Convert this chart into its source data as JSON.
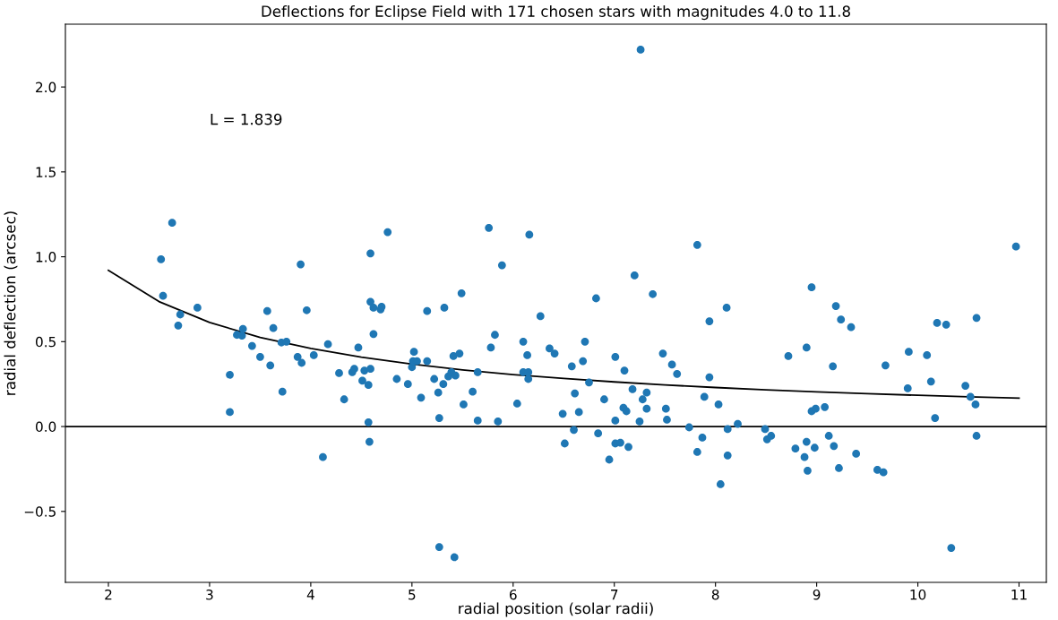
{
  "chart_data": {
    "type": "scatter",
    "title": "Deflections for Eclipse Field with 171 chosen stars with magnitudes 4.0 to 11.8",
    "xlabel": "radial position (solar radii)",
    "ylabel": "radial deflection (arcsec)",
    "annotations": [
      "L = 1.839"
    ],
    "xlim": [
      1.575,
      11.27
    ],
    "xticks": [
      2,
      3,
      4,
      5,
      6,
      7,
      8,
      9,
      10,
      11
    ],
    "ylim": [
      -0.918,
      2.37
    ],
    "yticks": [
      {
        "value": -0.5,
        "label": "−0.5"
      },
      {
        "value": 0,
        "label": "0.0"
      },
      {
        "value": 0.5,
        "label": "0.5"
      },
      {
        "value": 1.0,
        "label": "1.0"
      },
      {
        "value": 1.5,
        "label": "1.5"
      },
      {
        "value": 2.0,
        "label": "2.0"
      }
    ],
    "grid": false,
    "ref_lines": [
      {
        "axis": "y",
        "value": 0,
        "color": "#000000"
      }
    ],
    "series": [
      {
        "color": "#1f77b4",
        "marker": "circle",
        "x": [
          2.52,
          2.54,
          2.63,
          2.69,
          2.71,
          2.88,
          3.2,
          3.2,
          3.27,
          3.32,
          3.33,
          3.42,
          3.5,
          3.57,
          3.6,
          3.63,
          3.71,
          3.72,
          3.76,
          3.87,
          3.9,
          3.91,
          3.96,
          4.03,
          4.12,
          4.17,
          4.28,
          4.33,
          4.41,
          4.43,
          4.47,
          4.51,
          4.53,
          4.57,
          4.57,
          4.58,
          4.59,
          4.59,
          4.59,
          4.62,
          4.62,
          4.69,
          4.7,
          4.76,
          4.85,
          4.96,
          5.0,
          5.01,
          5.02,
          5.05,
          5.09,
          5.15,
          5.15,
          5.22,
          5.26,
          5.27,
          5.27,
          5.31,
          5.32,
          5.36,
          5.39,
          5.41,
          5.42,
          5.43,
          5.47,
          5.49,
          5.51,
          5.6,
          5.65,
          5.65,
          5.76,
          5.78,
          5.82,
          5.85,
          5.89,
          6.04,
          6.1,
          6.1,
          6.14,
          6.15,
          6.15,
          6.16,
          6.27,
          6.36,
          6.41,
          6.49,
          6.51,
          6.58,
          6.6,
          6.61,
          6.65,
          6.69,
          6.71,
          6.75,
          6.82,
          6.84,
          6.9,
          6.95,
          7.01,
          7.01,
          7.01,
          7.06,
          7.09,
          7.1,
          7.12,
          7.14,
          7.18,
          7.2,
          7.26,
          7.25,
          7.28,
          7.32,
          7.32,
          7.38,
          7.48,
          7.51,
          7.52,
          7.57,
          7.62,
          7.74,
          7.82,
          7.82,
          7.87,
          7.89,
          7.94,
          7.94,
          8.03,
          8.05,
          8.11,
          8.12,
          8.12,
          8.22,
          8.49,
          8.51,
          8.55,
          8.72,
          8.79,
          8.88,
          8.9,
          8.9,
          8.91,
          8.95,
          8.95,
          8.98,
          8.99,
          9.08,
          9.12,
          9.16,
          9.17,
          9.19,
          9.22,
          9.24,
          9.34,
          9.39,
          9.6,
          9.66,
          9.68,
          9.9,
          9.91,
          10.09,
          10.13,
          10.17,
          10.19,
          10.28,
          10.33,
          10.47,
          10.52,
          10.57,
          10.58,
          10.58,
          10.97
        ],
        "values": [
          0.985,
          0.77,
          1.2,
          0.595,
          0.66,
          0.7,
          0.305,
          0.085,
          0.54,
          0.535,
          0.575,
          0.475,
          0.41,
          0.68,
          0.36,
          0.58,
          0.495,
          0.205,
          0.5,
          0.41,
          0.955,
          0.375,
          0.685,
          0.42,
          -0.18,
          0.485,
          0.315,
          0.16,
          0.32,
          0.34,
          0.465,
          0.27,
          0.33,
          0.245,
          0.025,
          -0.09,
          0.34,
          0.735,
          1.02,
          0.7,
          0.545,
          0.69,
          0.705,
          1.145,
          0.28,
          0.25,
          0.35,
          0.385,
          0.44,
          0.385,
          0.17,
          0.385,
          0.68,
          0.28,
          0.2,
          0.05,
          -0.71,
          0.25,
          0.7,
          0.295,
          0.32,
          0.415,
          -0.77,
          0.3,
          0.43,
          0.785,
          0.13,
          0.205,
          0.32,
          0.035,
          1.17,
          0.465,
          0.54,
          0.03,
          0.95,
          0.135,
          0.5,
          0.32,
          0.42,
          0.32,
          0.28,
          1.13,
          0.65,
          0.46,
          0.43,
          0.075,
          -0.1,
          0.355,
          -0.02,
          0.195,
          0.085,
          0.385,
          0.5,
          0.26,
          0.755,
          -0.04,
          0.16,
          -0.195,
          0.41,
          0.035,
          -0.1,
          -0.095,
          0.11,
          0.33,
          0.09,
          -0.12,
          0.22,
          0.89,
          2.22,
          0.03,
          0.16,
          0.2,
          0.105,
          0.78,
          0.43,
          0.105,
          0.04,
          0.365,
          0.31,
          -0.005,
          1.07,
          -0.15,
          -0.065,
          0.175,
          0.62,
          0.29,
          0.13,
          -0.34,
          0.7,
          -0.015,
          -0.17,
          0.015,
          -0.015,
          -0.075,
          -0.055,
          0.415,
          -0.13,
          -0.18,
          0.465,
          -0.09,
          -0.26,
          0.82,
          0.09,
          -0.125,
          0.105,
          0.115,
          -0.055,
          0.355,
          -0.115,
          0.71,
          -0.245,
          0.63,
          0.585,
          -0.16,
          -0.255,
          -0.27,
          0.36,
          0.225,
          0.44,
          0.42,
          0.265,
          0.05,
          0.61,
          0.6,
          -0.715,
          0.24,
          0.175,
          0.13,
          0.64,
          -0.055,
          1.06
        ]
      },
      {
        "type": "line",
        "color": "#000000",
        "marker": "none",
        "line_style": "solid",
        "x": [
          2,
          2.5,
          3,
          3.5,
          4,
          4.5,
          5,
          5.5,
          6,
          6.5,
          7,
          7.5,
          8,
          8.5,
          9,
          9.5,
          10,
          10.5,
          11
        ],
        "values": [
          0.92,
          0.736,
          0.613,
          0.525,
          0.46,
          0.409,
          0.368,
          0.334,
          0.306,
          0.283,
          0.263,
          0.245,
          0.23,
          0.216,
          0.204,
          0.194,
          0.184,
          0.175,
          0.167
        ]
      }
    ]
  }
}
